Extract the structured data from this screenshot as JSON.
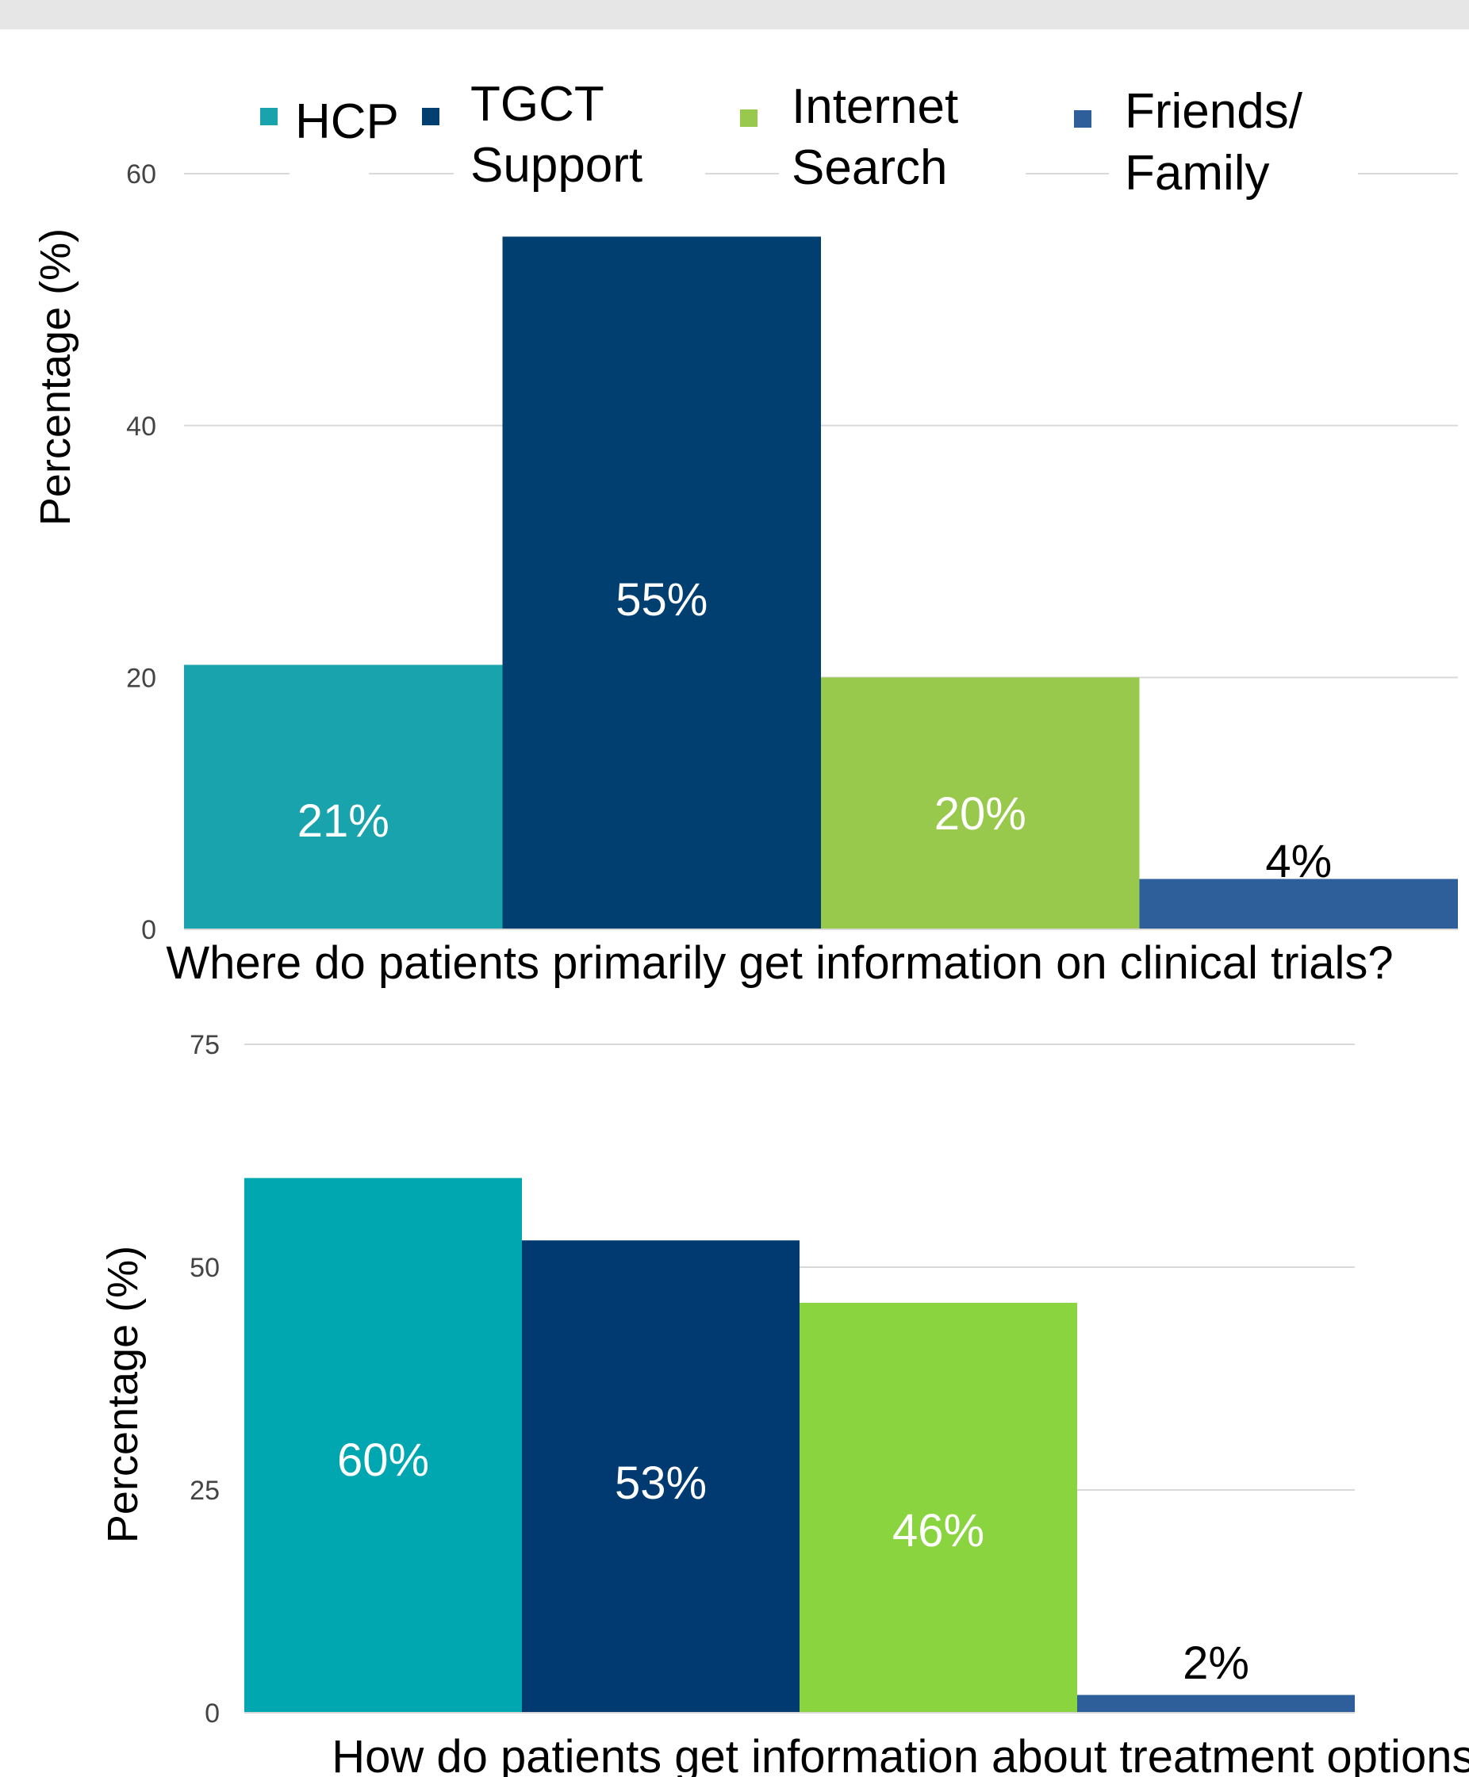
{
  "chart_data": [
    {
      "type": "bar",
      "categories": [
        "HCP",
        "TGCT Support",
        "Internet Search",
        "Friends/ Family"
      ],
      "values": [
        21,
        55,
        20,
        4
      ],
      "data_labels": [
        "21%",
        "55%",
        "20%",
        "4%"
      ],
      "colors": [
        "#18a3ad",
        "#003f70",
        "#98c94c",
        "#2e5f9b"
      ],
      "ylabel": "Percentage  (%)",
      "xlabel": "Where do patients primarily get information on clinical trials?",
      "ylim": [
        0,
        60
      ],
      "yticks": [
        "0",
        "20",
        "40",
        "60"
      ],
      "grid": true,
      "legend": {
        "placement": "top",
        "entries": [
          {
            "lines": [
              "HCP"
            ],
            "color": "#18a3ad"
          },
          {
            "lines": [
              "TGCT",
              "Support"
            ],
            "color": "#003f70"
          },
          {
            "lines": [
              "Internet",
              "Search"
            ],
            "color": "#98c94c"
          },
          {
            "lines": [
              "Friends/",
              "Family"
            ],
            "color": "#2e5f9b"
          }
        ]
      }
    },
    {
      "type": "bar",
      "categories": [
        "HCP",
        "TGCT Support",
        "Internet Search",
        "Friends/ Family"
      ],
      "values": [
        60,
        53,
        46,
        2
      ],
      "data_labels": [
        "60%",
        "53%",
        "46%",
        "2%"
      ],
      "colors": [
        "#00a7b1",
        "#003a70",
        "#8ad43f",
        "#2e5f9b"
      ],
      "ylabel": "Percentage  (%)",
      "xlabel": "How do patients get information about treatment options?",
      "ylim": [
        0,
        75
      ],
      "yticks": [
        "0",
        "25",
        "50",
        "75"
      ],
      "grid": true
    }
  ]
}
